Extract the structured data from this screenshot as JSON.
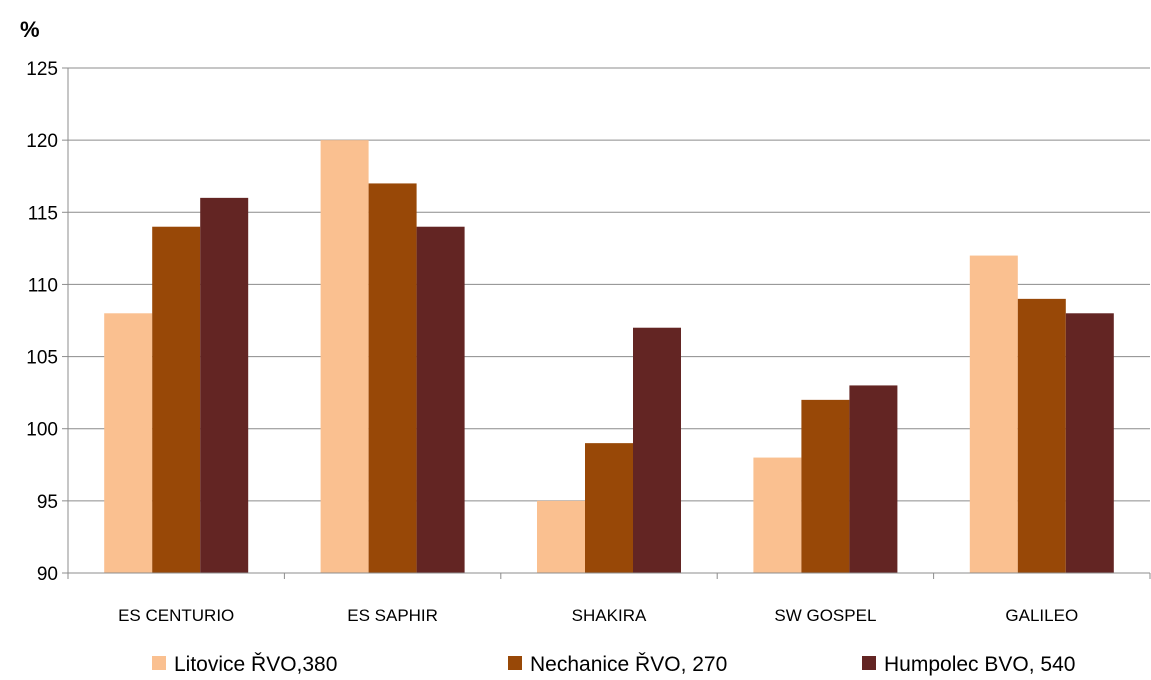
{
  "chart_data": {
    "type": "bar",
    "title": "",
    "xlabel": "",
    "ylabel": "%",
    "ylim": [
      90,
      125
    ],
    "yticks": [
      90,
      95,
      100,
      105,
      110,
      115,
      120,
      125
    ],
    "grid": true,
    "legend": "bottom",
    "categories": [
      "ES CENTURIO",
      "ES SAPHIR",
      "SHAKIRA",
      "SW GOSPEL",
      "GALILEO"
    ],
    "series": [
      {
        "name": "Litovice ŘVO,380",
        "color": "#FAC090",
        "values": [
          108,
          120,
          95,
          98,
          112
        ]
      },
      {
        "name": "Nechanice ŘVO, 270",
        "color": "#984807",
        "values": [
          114,
          117,
          99,
          102,
          109
        ]
      },
      {
        "name": "Humpolec BVO, 540",
        "color": "#632523",
        "values": [
          116,
          114,
          107,
          103,
          108
        ]
      }
    ]
  }
}
